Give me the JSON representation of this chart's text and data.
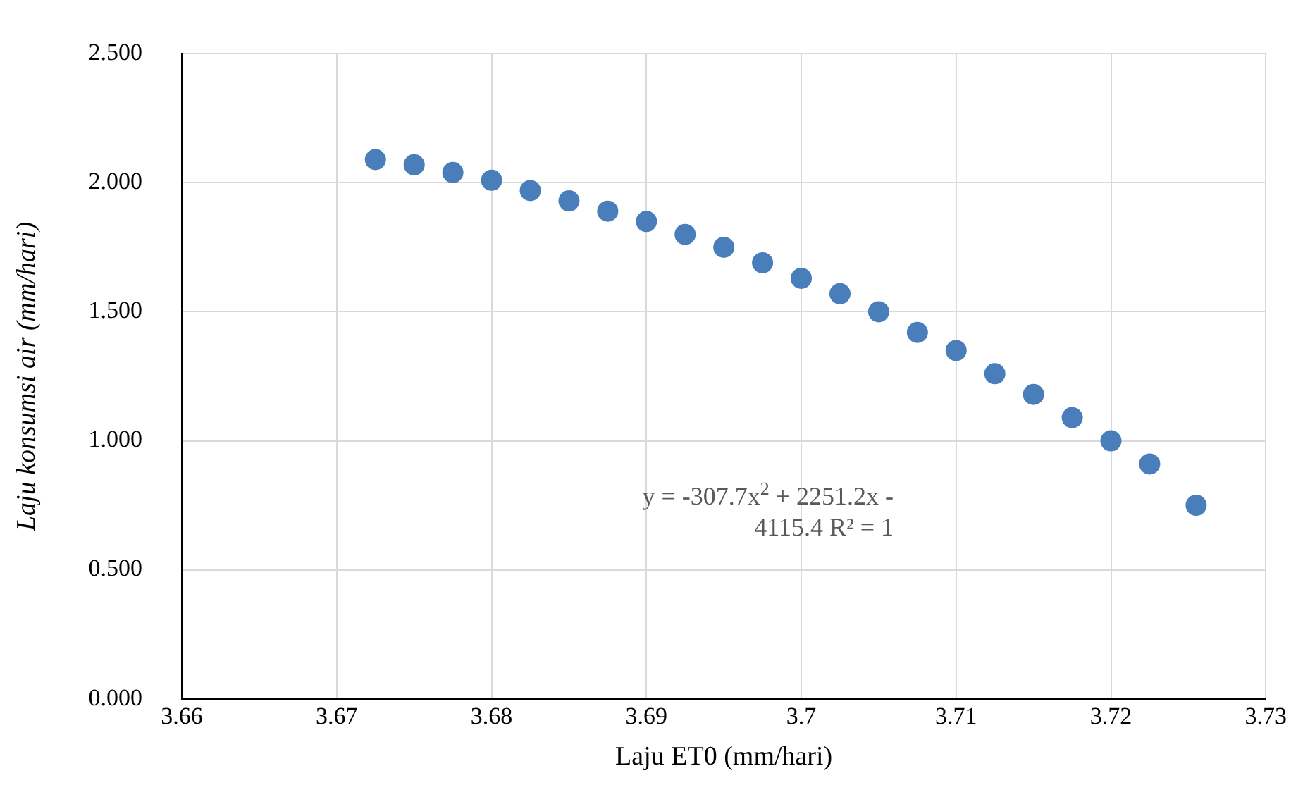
{
  "chart_data": {
    "type": "scatter",
    "xlabel": "Laju ET0 (mm/hari)",
    "ylabel": "Laju konsumsi air (mm/hari)",
    "annotations": [
      "y = -307.7x$^{2}$ + 2251.2x - 4115.4 R² = 1"
    ],
    "series": [
      {
        "color": "#4a7ebb",
        "x": [
          3.6725,
          3.675,
          3.6775,
          3.68,
          3.6825,
          3.685,
          3.6875,
          3.69,
          3.6925,
          3.695,
          3.6975,
          3.7,
          3.7025,
          3.705,
          3.7075,
          3.71,
          3.7125,
          3.715,
          3.7175,
          3.72,
          3.7225,
          3.7255
        ],
        "values": [
          2.09,
          2.07,
          2.04,
          2.01,
          1.97,
          1.93,
          1.89,
          1.85,
          1.8,
          1.75,
          1.69,
          1.63,
          1.57,
          1.5,
          1.42,
          1.35,
          1.26,
          1.18,
          1.09,
          1.0,
          0.91,
          0.75
        ]
      }
    ],
    "xlim": [
      3.66,
      3.73
    ],
    "xticks": [
      3.66,
      3.67,
      3.68,
      3.69,
      3.7,
      3.71,
      3.72,
      3.73
    ],
    "ylim": [
      0,
      2.5
    ],
    "yticks": [
      {
        "value": 0,
        "label": "0.000"
      },
      {
        "value": 0.5,
        "label": "0.500"
      },
      {
        "value": 1,
        "label": "1.000"
      },
      {
        "value": 1.5,
        "label": "1.500"
      },
      {
        "value": 2,
        "label": "2.000"
      },
      {
        "value": 2.5,
        "label": "2.500"
      }
    ],
    "grid": true,
    "marker": "circle",
    "legend": false
  }
}
